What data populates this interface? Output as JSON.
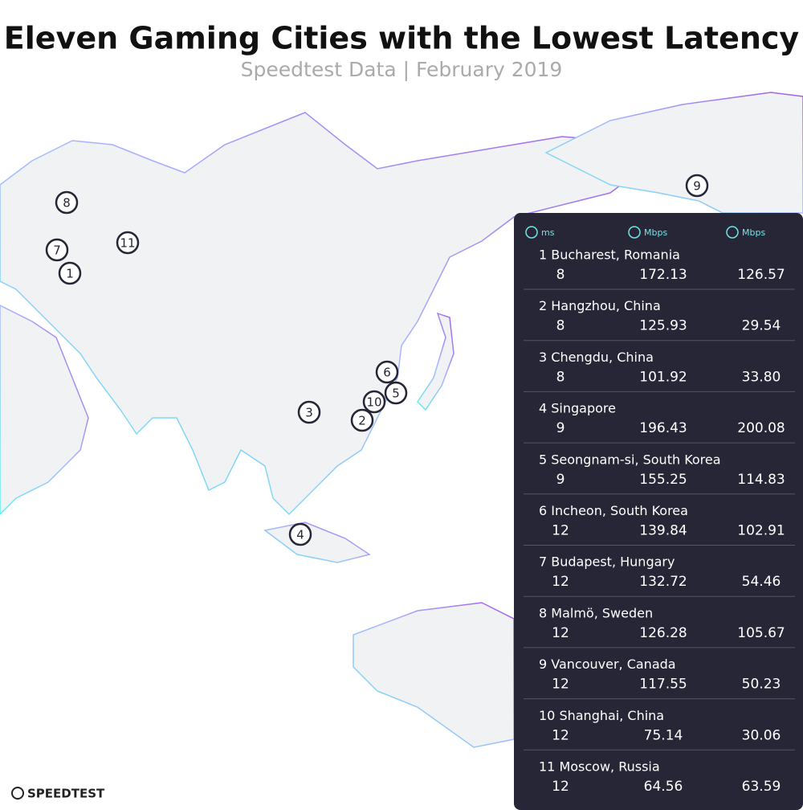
{
  "header": {
    "title": "Eleven Gaming Cities with the Lowest Latency",
    "subtitle": "Speedtest Data | February 2019"
  },
  "map": {
    "markers": [
      "1",
      "2",
      "3",
      "4",
      "5",
      "6",
      "7",
      "8",
      "9",
      "10",
      "11"
    ]
  },
  "table": {
    "columns": [
      "ms",
      "Mbps",
      "Mbps"
    ],
    "rows": [
      [
        "1 Bucharest, Romania",
        "8",
        "172.13",
        "126.57"
      ],
      [
        "2 Hangzhou, China",
        "8",
        "125.93",
        "29.54"
      ],
      [
        "3 Chengdu, China",
        "8",
        "101.92",
        "33.80"
      ],
      [
        "4 Singapore",
        "9",
        "196.43",
        "200.08"
      ],
      [
        "5 Seongnam-si, South Korea",
        "9",
        "155.25",
        "114.83"
      ],
      [
        "6 Incheon, South Korea",
        "12",
        "139.84",
        "102.91"
      ],
      [
        "7 Budapest, Hungary",
        "12",
        "132.72",
        "54.46"
      ],
      [
        "8 Malmö, Sweden",
        "12",
        "126.28",
        "105.67"
      ],
      [
        "9 Vancouver, Canada",
        "12",
        "117.55",
        "50.23"
      ],
      [
        "10 Shanghai, China",
        "12",
        "75.14",
        "30.06"
      ],
      [
        "11 Moscow, Russia",
        "12",
        "64.56",
        "63.59"
      ]
    ]
  },
  "footer": {
    "logo": "SPEEDTEST"
  }
}
